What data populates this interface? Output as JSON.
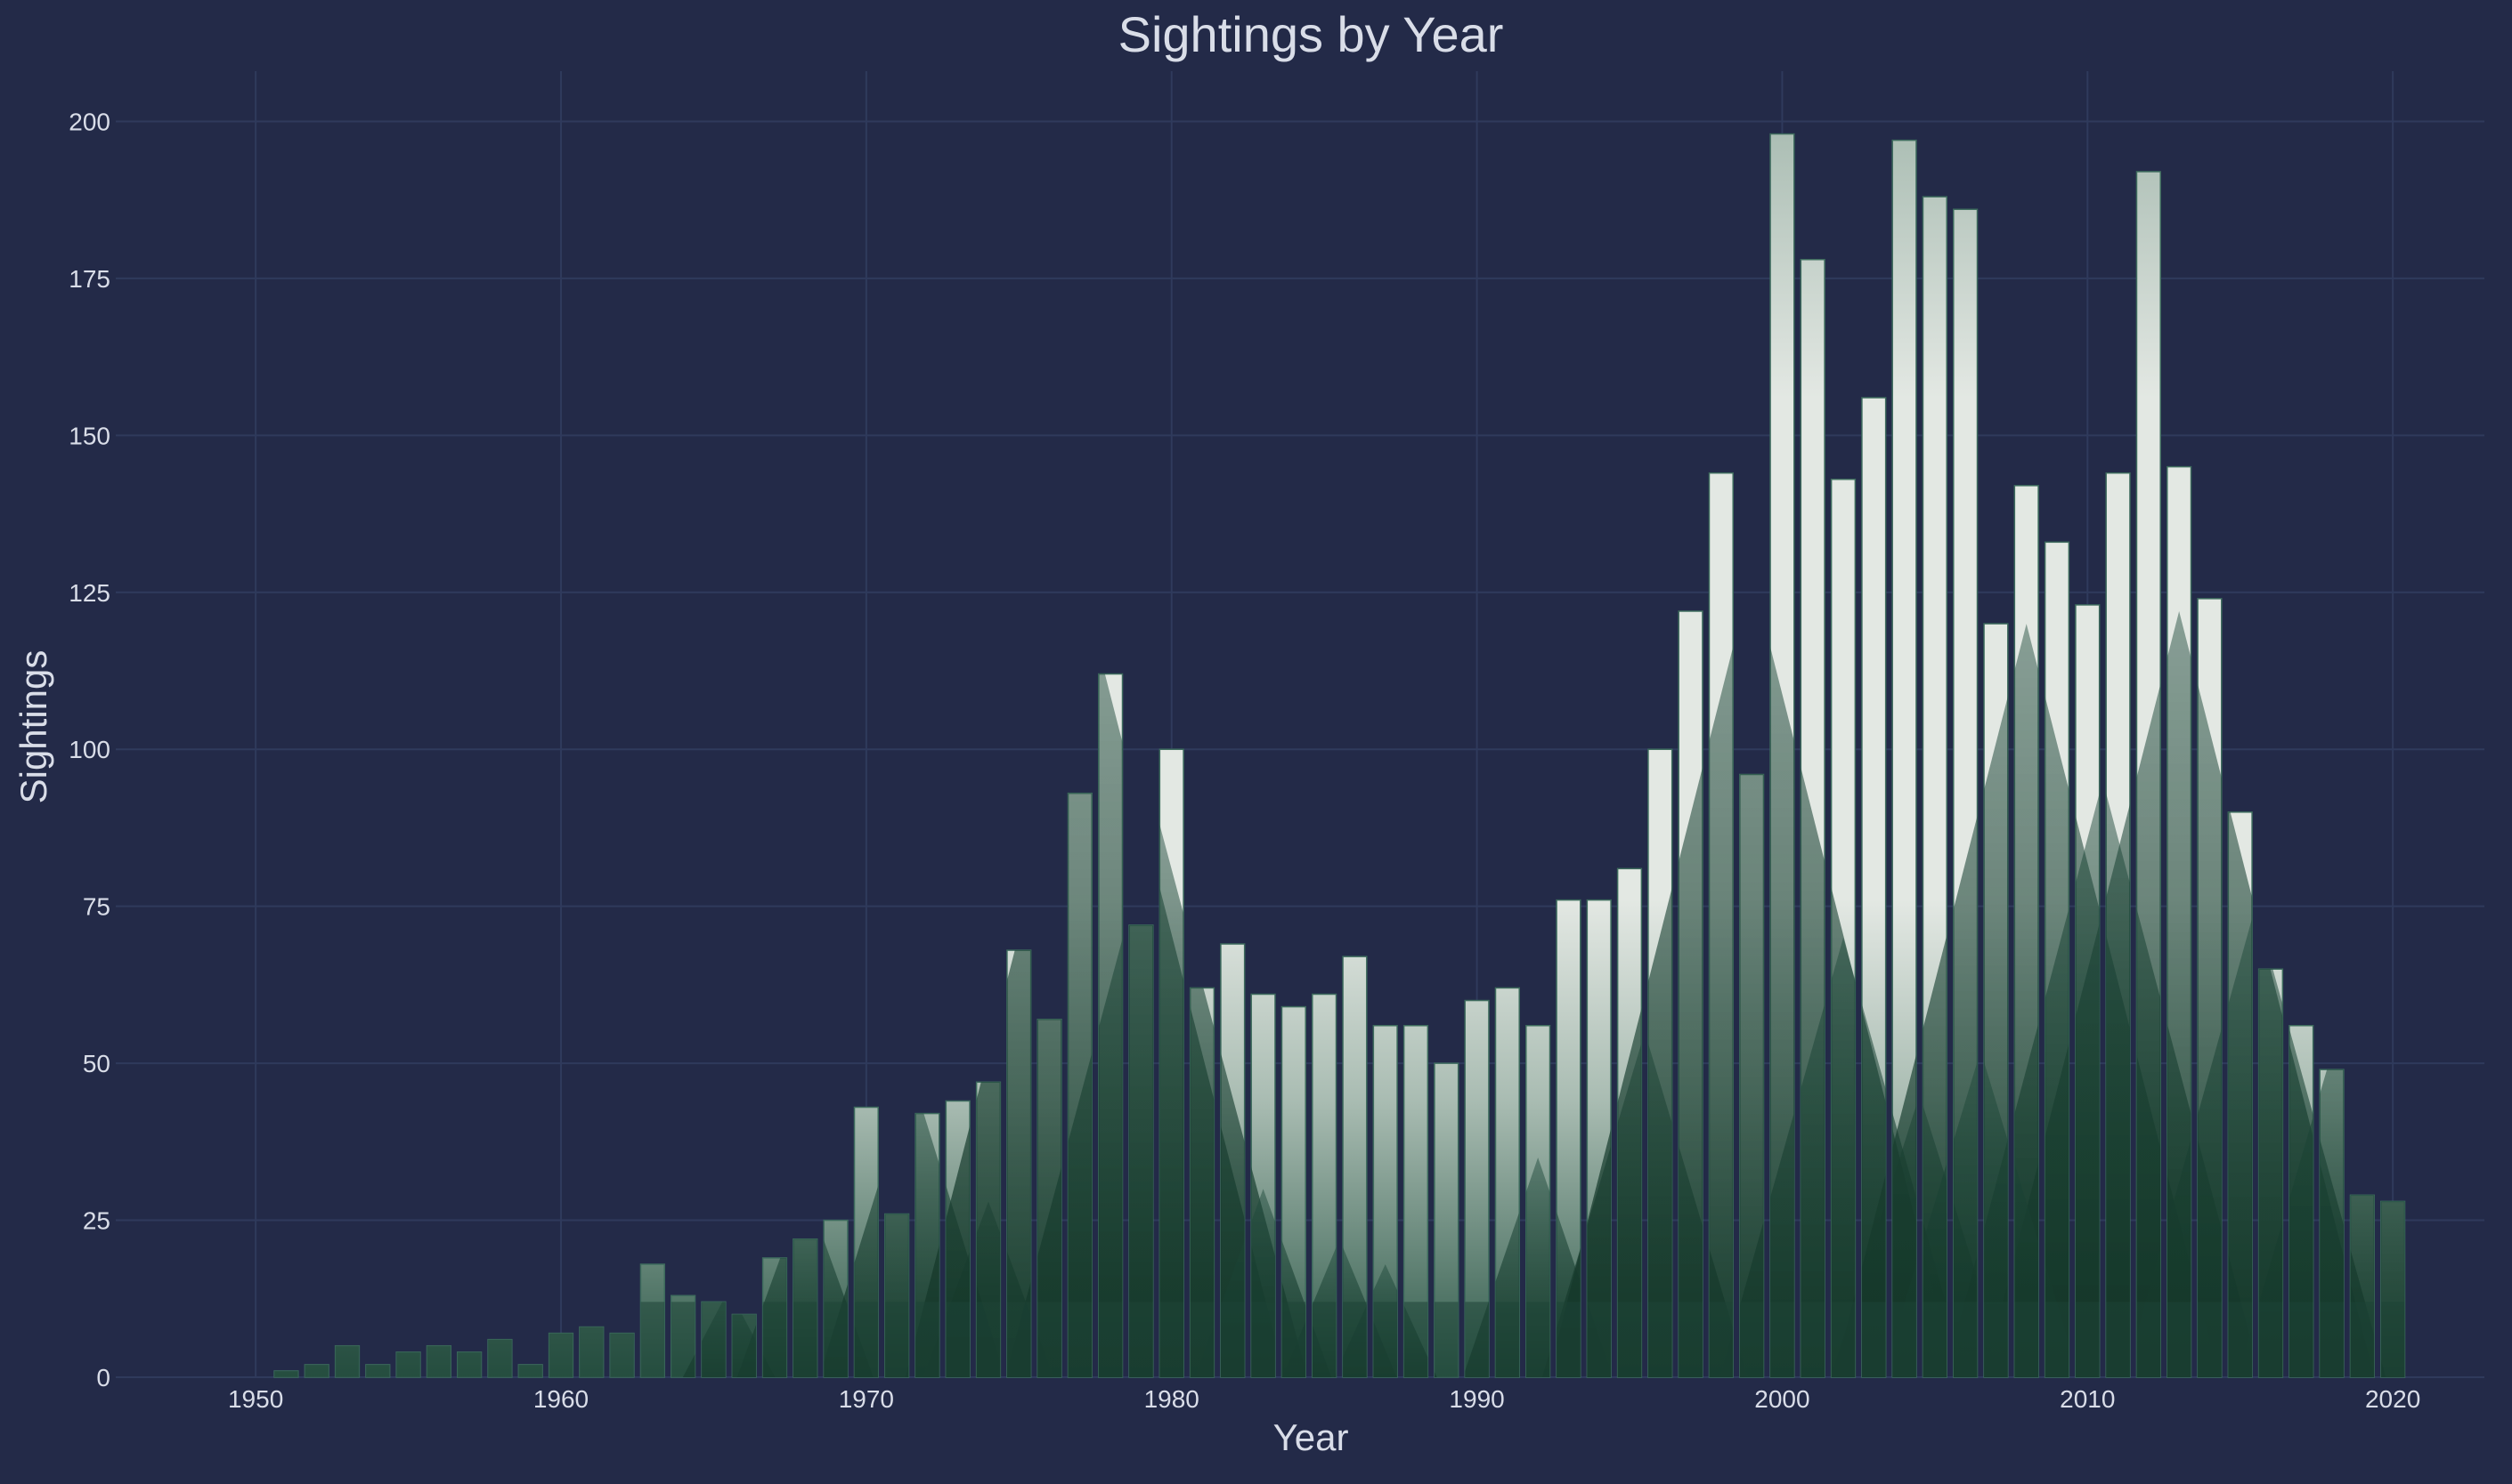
{
  "chart_data": {
    "type": "bar",
    "title": "Sightings by Year",
    "xlabel": "Year",
    "ylabel": "Sightings",
    "xlim": [
      1946,
      2023
    ],
    "ylim": [
      0,
      208
    ],
    "xticks": [
      1950,
      1960,
      1970,
      1980,
      1990,
      2000,
      2010,
      2020
    ],
    "yticks": [
      0,
      25,
      50,
      75,
      100,
      125,
      150,
      175,
      200
    ],
    "grid": true,
    "legend": "none",
    "bar_fill": "misty pine forest image texture",
    "colors": {
      "background": "#232a48",
      "grid": "#2f3a5c",
      "text": "#d9dde8",
      "bar_light": "#e3e8e3",
      "bar_mid": "#a9bcb2",
      "bar_dark": "#2f5a4a",
      "bar_edge": "#3d6b5d"
    },
    "x": [
      1951,
      1952,
      1953,
      1954,
      1955,
      1956,
      1957,
      1958,
      1959,
      1960,
      1961,
      1962,
      1963,
      1964,
      1965,
      1966,
      1967,
      1968,
      1969,
      1970,
      1971,
      1972,
      1973,
      1974,
      1975,
      1976,
      1977,
      1978,
      1979,
      1980,
      1981,
      1982,
      1983,
      1984,
      1985,
      1986,
      1987,
      1988,
      1989,
      1990,
      1991,
      1992,
      1993,
      1994,
      1995,
      1996,
      1997,
      1998,
      1999,
      2000,
      2001,
      2002,
      2003,
      2004,
      2005,
      2006,
      2007,
      2008,
      2009,
      2010,
      2011,
      2012,
      2013,
      2014,
      2015,
      2016,
      2017,
      2018,
      2019,
      2020
    ],
    "values": [
      1,
      2,
      5,
      2,
      4,
      5,
      4,
      6,
      2,
      7,
      8,
      7,
      18,
      13,
      12,
      10,
      19,
      22,
      25,
      43,
      26,
      42,
      44,
      47,
      68,
      57,
      93,
      112,
      72,
      100,
      62,
      69,
      61,
      59,
      61,
      67,
      56,
      56,
      50,
      60,
      62,
      56,
      76,
      76,
      81,
      100,
      122,
      144,
      96,
      198,
      178,
      143,
      156,
      197,
      188,
      186,
      120,
      142,
      133,
      123,
      144,
      192,
      145,
      124,
      90,
      65,
      56,
      49,
      29,
      28
    ]
  }
}
